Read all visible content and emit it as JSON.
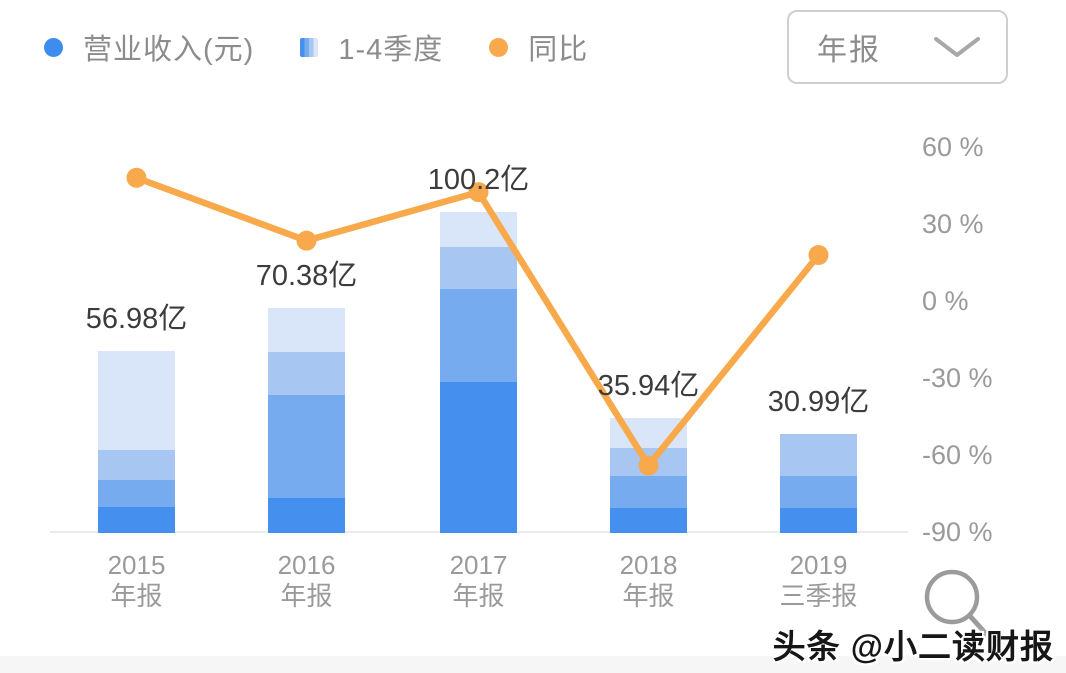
{
  "legend": {
    "items": [
      {
        "label": "营业收入(元)",
        "marker": "dot",
        "color": "#3d8cf0"
      },
      {
        "label": "1-4季度",
        "marker": "stripes",
        "colors": [
          "#4590ee",
          "#77abef",
          "#a7c6f2",
          "#d9e6fa"
        ]
      },
      {
        "label": "同比",
        "marker": "dot",
        "color": "#f7a94b"
      }
    ]
  },
  "dropdown": {
    "value": "年报"
  },
  "watermark": "头条 @小二读财报",
  "chart_data": {
    "type": "combo-stacked-bar-line",
    "categories": [
      {
        "line1": "2015",
        "line2": "年报"
      },
      {
        "line1": "2016",
        "line2": "年报"
      },
      {
        "line1": "2017",
        "line2": "年报"
      },
      {
        "line1": "2018",
        "line2": "年报"
      },
      {
        "line1": "2019",
        "line2": "三季报"
      }
    ],
    "bar_series_name": "营业收入(元)",
    "bar_unit": "亿",
    "totals_label": [
      "56.98亿",
      "70.38亿",
      "100.2亿",
      "35.94亿",
      "30.99亿"
    ],
    "totals_yi": [
      56.98,
      70.38,
      100.2,
      35.94,
      30.99
    ],
    "quarter_segments_name": "1-4季度",
    "quarter_segments_yi": [
      [
        8.1,
        8.4,
        9.3,
        31.2
      ],
      [
        10.9,
        32.2,
        13.4,
        13.9
      ],
      [
        47.1,
        29.0,
        13.4,
        10.7
      ],
      [
        7.8,
        10.0,
        8.7,
        9.4
      ],
      [
        7.8,
        10.0,
        13.2
      ]
    ],
    "line_series_name": "同比",
    "yoy_percent": [
      48.0,
      23.5,
      42.4,
      -64.1,
      17.9
    ],
    "right_axis": {
      "ticks": [
        "60 %",
        "30 %",
        "0 %",
        "-30 %",
        "-60 %",
        "-90 %"
      ],
      "max": 60,
      "min": -90,
      "step": 30,
      "unit": "%",
      "grid": false
    },
    "legend_position": "top-left",
    "colors": {
      "quarters_bottom_to_top": [
        "#4590ee",
        "#77abef",
        "#a7c6f2",
        "#d9e6fa"
      ],
      "line": "#f7a94b",
      "value_label": "#3c3c3c",
      "axis_text": "#9a9a9a"
    }
  }
}
